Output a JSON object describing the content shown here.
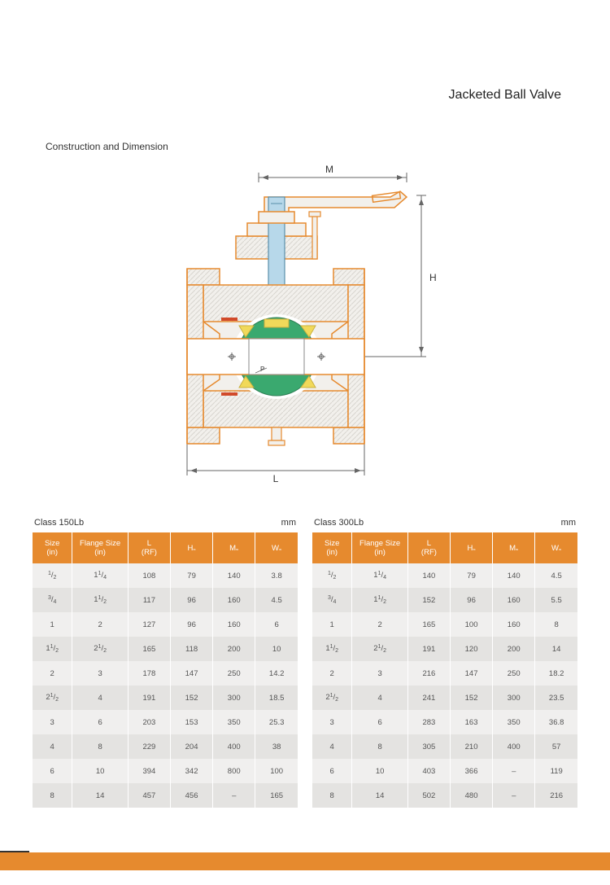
{
  "page": {
    "title": "Jacketed Ball Valve",
    "section_title": "Construction and Dimension",
    "unit_label": "mm"
  },
  "diagram": {
    "labels": {
      "top": "M",
      "right": "H",
      "bottom": "L",
      "inner": "P"
    },
    "colors": {
      "body_outline": "#e68a2e",
      "body_fill": "#f2f0ec",
      "stem": "#b7d8ea",
      "ball": "#3aa96f",
      "seat": "#f1d95a",
      "dim_line": "#666666",
      "hatch": "#d8d5cf",
      "accent_red": "#d14a2a",
      "bore": "#ffffff"
    },
    "fontsize": 12
  },
  "tables": {
    "columns": [
      "Size\n(in)",
      "Flange Size\n(in)",
      "L\n(RF)",
      "H≈",
      "M≈",
      "W≈"
    ],
    "col_widths": [
      "15%",
      "21%",
      "16%",
      "16%",
      "16%",
      "16%"
    ],
    "header_bg": "#e68a2e",
    "header_fg": "#ffffff",
    "row_odd_bg": "#f0efee",
    "row_even_bg": "#e4e3e1",
    "cell_fg": "#555555",
    "class150": {
      "title": "Class 150Lb",
      "rows": [
        [
          "1/2",
          "1 1/4",
          "108",
          "79",
          "140",
          "3.8"
        ],
        [
          "3/4",
          "1 1/2",
          "117",
          "96",
          "160",
          "4.5"
        ],
        [
          "1",
          "2",
          "127",
          "96",
          "160",
          "6"
        ],
        [
          "1 1/2",
          "2 1/2",
          "165",
          "118",
          "200",
          "10"
        ],
        [
          "2",
          "3",
          "178",
          "147",
          "250",
          "14.2"
        ],
        [
          "2 1/2",
          "4",
          "191",
          "152",
          "300",
          "18.5"
        ],
        [
          "3",
          "6",
          "203",
          "153",
          "350",
          "25.3"
        ],
        [
          "4",
          "8",
          "229",
          "204",
          "400",
          "38"
        ],
        [
          "6",
          "10",
          "394",
          "342",
          "800",
          "100"
        ],
        [
          "8",
          "14",
          "457",
          "456",
          "–",
          "165"
        ]
      ]
    },
    "class300": {
      "title": "Class 300Lb",
      "rows": [
        [
          "1/2",
          "1 1/4",
          "140",
          "79",
          "140",
          "4.5"
        ],
        [
          "3/4",
          "1 1/2",
          "152",
          "96",
          "160",
          "5.5"
        ],
        [
          "1",
          "2",
          "165",
          "100",
          "160",
          "8"
        ],
        [
          "1 1/2",
          "2 1/2",
          "191",
          "120",
          "200",
          "14"
        ],
        [
          "2",
          "3",
          "216",
          "147",
          "250",
          "18.2"
        ],
        [
          "2 1/2",
          "4",
          "241",
          "152",
          "300",
          "23.5"
        ],
        [
          "3",
          "6",
          "283",
          "163",
          "350",
          "36.8"
        ],
        [
          "4",
          "8",
          "305",
          "210",
          "400",
          "57"
        ],
        [
          "6",
          "10",
          "403",
          "366",
          "–",
          "119"
        ],
        [
          "8",
          "14",
          "502",
          "480",
          "–",
          "216"
        ]
      ]
    }
  },
  "footer": {
    "bar_color": "#e68a2e"
  }
}
